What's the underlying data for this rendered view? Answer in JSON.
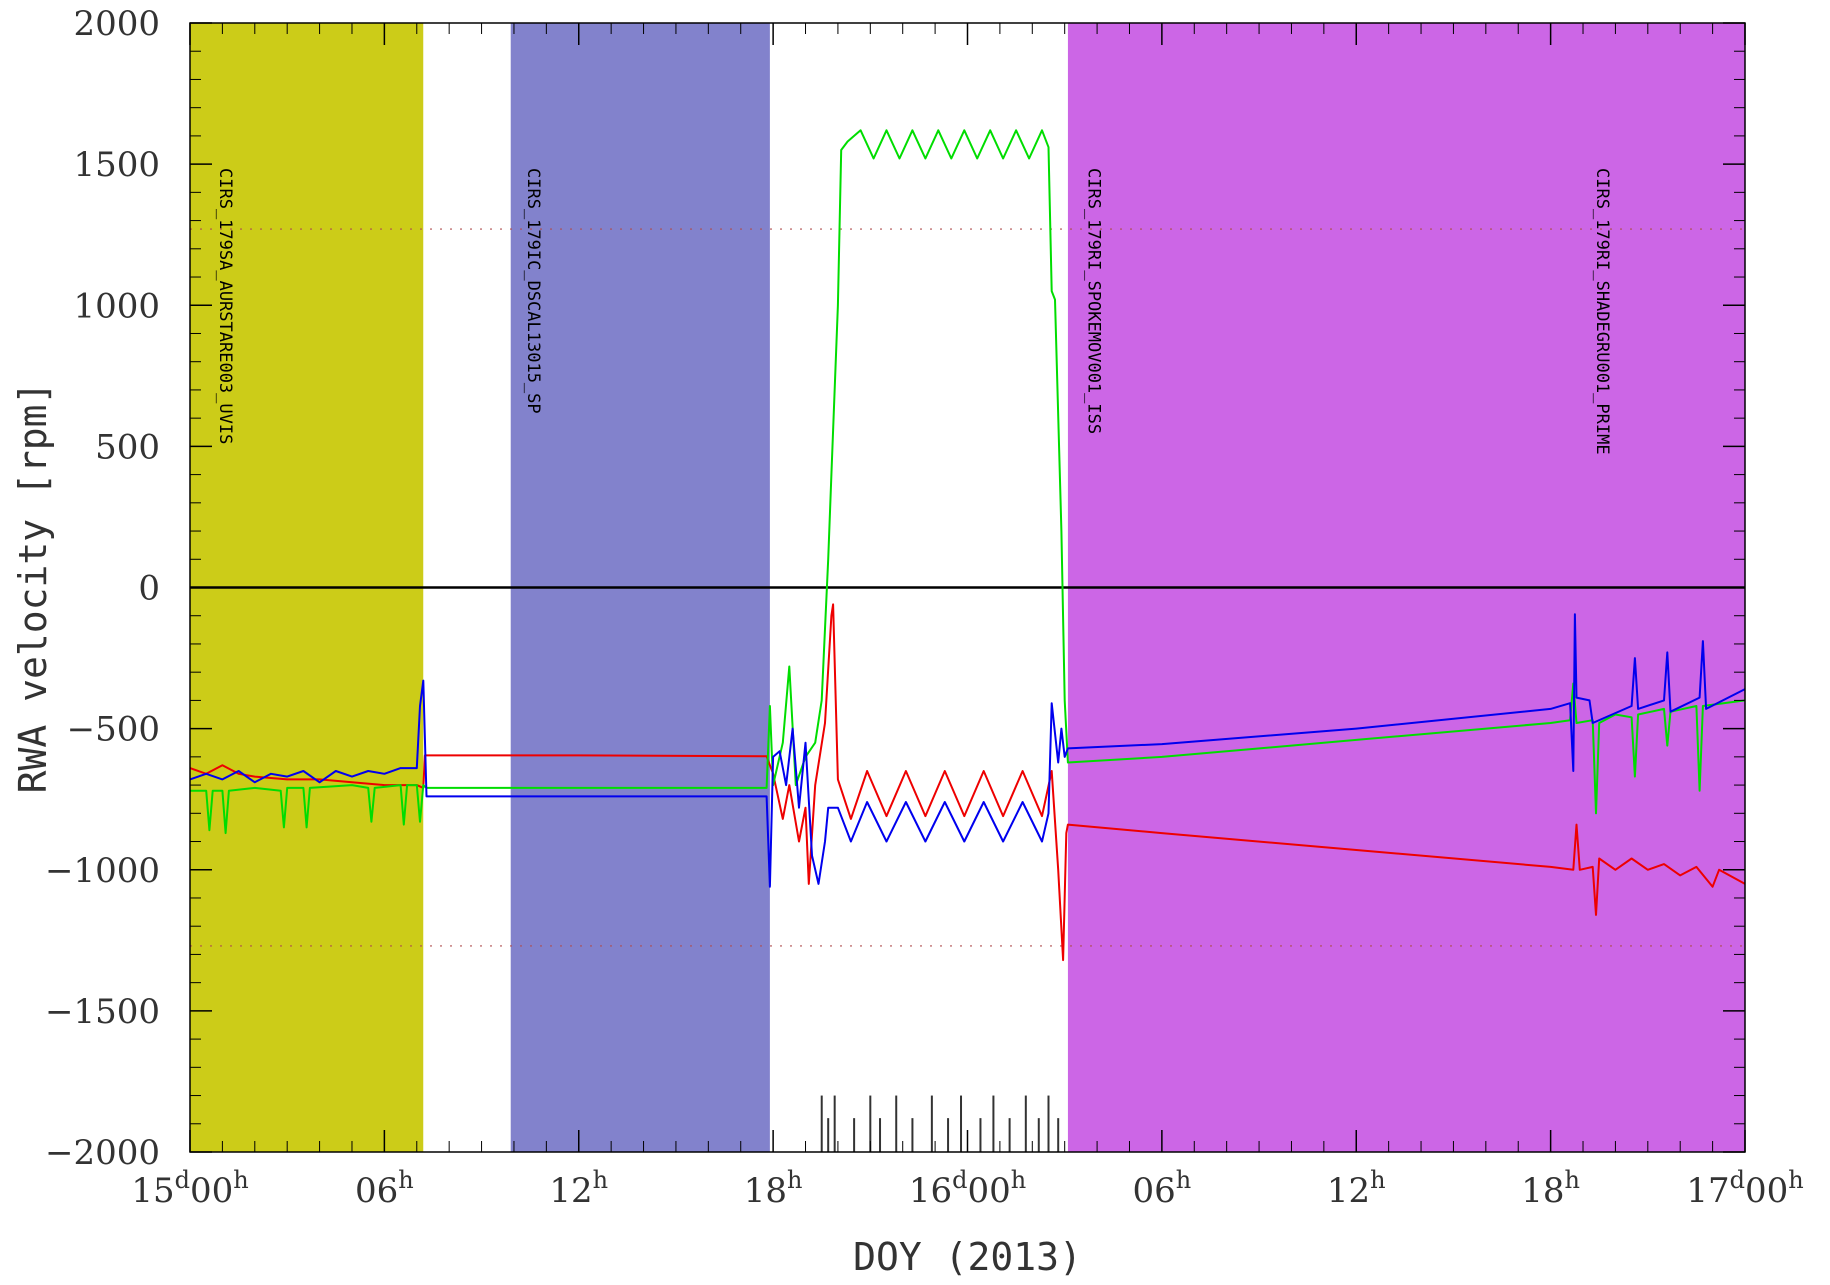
{
  "chart_data": {
    "type": "line",
    "title": "",
    "xlabel": "DOY (2013)",
    "ylabel": "RWA velocity [rpm]",
    "xlim": [
      "15d00h",
      "17d00h"
    ],
    "ylim": [
      -2000,
      2000
    ],
    "grid": false,
    "yticks": [
      -2000,
      -1500,
      -1000,
      -500,
      0,
      500,
      1000,
      1500,
      2000
    ],
    "xticks": [
      {
        "hours": 0,
        "day": "15",
        "rest": "00",
        "h": "h"
      },
      {
        "hours": 6,
        "day": "",
        "rest": "06",
        "h": "h"
      },
      {
        "hours": 12,
        "day": "",
        "rest": "12",
        "h": "h"
      },
      {
        "hours": 18,
        "day": "",
        "rest": "18",
        "h": "h"
      },
      {
        "hours": 24,
        "day": "16",
        "rest": "00",
        "h": "h"
      },
      {
        "hours": 30,
        "day": "",
        "rest": "06",
        "h": "h"
      },
      {
        "hours": 36,
        "day": "",
        "rest": "12",
        "h": "h"
      },
      {
        "hours": 42,
        "day": "",
        "rest": "18",
        "h": "h"
      },
      {
        "hours": 48,
        "day": "17",
        "rest": "00",
        "h": "h"
      }
    ],
    "reference_lines": [
      {
        "y": 0,
        "style": "solid",
        "color": "#000000"
      },
      {
        "y": 1270,
        "style": "dotted",
        "color": "#b05050"
      },
      {
        "y": -1270,
        "style": "dotted",
        "color": "#b05050"
      }
    ],
    "bands": [
      {
        "start": 0,
        "end": 7.2,
        "color": "#cccc18",
        "label": "CIRS_179SA_AURSTARE003_UVIS"
      },
      {
        "start": 9.9,
        "end": 17.9,
        "color": "#8282cc",
        "label": "CIRS_179IC_DSCAL13015_SP"
      },
      {
        "start": 27.1,
        "end": 48,
        "color": "#cc66e6",
        "label": "CIRS_179RI_SPOKEMOV001_ISS"
      },
      {
        "start": 27.1,
        "end": 48,
        "color": "#cc66e6",
        "label": "CIRS_179RI_SHADEGRU001_PRIME"
      }
    ],
    "band_label_positions_hours": [
      0.5,
      10.0,
      27.3,
      43.0
    ],
    "event_ticks_hours": [
      19.5,
      19.7,
      19.9,
      20.5,
      21.0,
      21.3,
      21.8,
      22.3,
      22.9,
      23.4,
      23.8,
      24.4,
      24.8,
      25.3,
      25.8,
      26.2,
      26.5,
      26.8
    ],
    "series": [
      {
        "color": "#ee0000",
        "points": [
          [
            0,
            -640
          ],
          [
            0.5,
            -660
          ],
          [
            1,
            -630
          ],
          [
            1.5,
            -660
          ],
          [
            2,
            -670
          ],
          [
            3,
            -680
          ],
          [
            4,
            -680
          ],
          [
            5,
            -690
          ],
          [
            6,
            -700
          ],
          [
            7,
            -700
          ],
          [
            7.2,
            -710
          ],
          [
            7.25,
            -595
          ],
          [
            12,
            -595
          ],
          [
            17.8,
            -598
          ],
          [
            18,
            -660
          ],
          [
            18.3,
            -820
          ],
          [
            18.5,
            -700
          ],
          [
            18.8,
            -900
          ],
          [
            19.0,
            -780
          ],
          [
            19.1,
            -1050
          ],
          [
            19.3,
            -700
          ],
          [
            19.6,
            -480
          ],
          [
            19.8,
            -100
          ],
          [
            19.85,
            -60
          ],
          [
            20,
            -680
          ],
          [
            20.4,
            -820
          ],
          [
            20.9,
            -650
          ],
          [
            21.5,
            -810
          ],
          [
            22.1,
            -650
          ],
          [
            22.7,
            -810
          ],
          [
            23.3,
            -650
          ],
          [
            23.9,
            -810
          ],
          [
            24.5,
            -650
          ],
          [
            25.1,
            -810
          ],
          [
            25.7,
            -650
          ],
          [
            26.3,
            -810
          ],
          [
            26.6,
            -650
          ],
          [
            26.8,
            -1000
          ],
          [
            26.95,
            -1320
          ],
          [
            27.05,
            -870
          ],
          [
            27.1,
            -840
          ],
          [
            30,
            -870
          ],
          [
            36,
            -930
          ],
          [
            42,
            -990
          ],
          [
            42.7,
            -1000
          ],
          [
            42.8,
            -840
          ],
          [
            42.9,
            -1000
          ],
          [
            43.3,
            -990
          ],
          [
            43.4,
            -1160
          ],
          [
            43.5,
            -960
          ],
          [
            44,
            -1000
          ],
          [
            44.5,
            -960
          ],
          [
            45,
            -1000
          ],
          [
            45.5,
            -980
          ],
          [
            46,
            -1020
          ],
          [
            46.5,
            -990
          ],
          [
            47,
            -1060
          ],
          [
            47.2,
            -1000
          ],
          [
            48,
            -1050
          ]
        ]
      },
      {
        "color": "#00dd00",
        "points": [
          [
            0,
            -720
          ],
          [
            0.5,
            -720
          ],
          [
            0.6,
            -860
          ],
          [
            0.7,
            -720
          ],
          [
            1,
            -720
          ],
          [
            1.1,
            -870
          ],
          [
            1.2,
            -720
          ],
          [
            2,
            -710
          ],
          [
            2.8,
            -720
          ],
          [
            2.9,
            -850
          ],
          [
            3.0,
            -710
          ],
          [
            3.5,
            -710
          ],
          [
            3.6,
            -850
          ],
          [
            3.7,
            -710
          ],
          [
            5,
            -700
          ],
          [
            5.5,
            -710
          ],
          [
            5.6,
            -830
          ],
          [
            5.7,
            -710
          ],
          [
            6.5,
            -700
          ],
          [
            6.6,
            -840
          ],
          [
            6.7,
            -700
          ],
          [
            7,
            -700
          ],
          [
            7.1,
            -830
          ],
          [
            7.2,
            -700
          ],
          [
            7.3,
            -710
          ],
          [
            12,
            -710
          ],
          [
            17.8,
            -710
          ],
          [
            17.9,
            -420
          ],
          [
            18.0,
            -700
          ],
          [
            18.3,
            -550
          ],
          [
            18.5,
            -280
          ],
          [
            18.7,
            -700
          ],
          [
            19.0,
            -600
          ],
          [
            19.3,
            -550
          ],
          [
            19.5,
            -400
          ],
          [
            19.7,
            100
          ],
          [
            19.8,
            400
          ],
          [
            20.0,
            1000
          ],
          [
            20.1,
            1550
          ],
          [
            20.3,
            1580
          ],
          [
            20.7,
            1620
          ],
          [
            21.1,
            1520
          ],
          [
            21.5,
            1620
          ],
          [
            21.9,
            1520
          ],
          [
            22.3,
            1620
          ],
          [
            22.7,
            1520
          ],
          [
            23.1,
            1620
          ],
          [
            23.5,
            1520
          ],
          [
            23.9,
            1620
          ],
          [
            24.3,
            1520
          ],
          [
            24.7,
            1620
          ],
          [
            25.1,
            1520
          ],
          [
            25.5,
            1620
          ],
          [
            25.9,
            1520
          ],
          [
            26.3,
            1620
          ],
          [
            26.5,
            1560
          ],
          [
            26.6,
            1050
          ],
          [
            26.7,
            1020
          ],
          [
            26.9,
            200
          ],
          [
            27.0,
            -400
          ],
          [
            27.1,
            -620
          ],
          [
            30,
            -600
          ],
          [
            36,
            -540
          ],
          [
            42,
            -480
          ],
          [
            42.6,
            -470
          ],
          [
            42.7,
            -340
          ],
          [
            42.8,
            -480
          ],
          [
            43.3,
            -470
          ],
          [
            43.4,
            -800
          ],
          [
            43.5,
            -480
          ],
          [
            44,
            -450
          ],
          [
            44.5,
            -460
          ],
          [
            44.6,
            -670
          ],
          [
            44.7,
            -450
          ],
          [
            45.5,
            -430
          ],
          [
            45.6,
            -560
          ],
          [
            45.7,
            -440
          ],
          [
            46.5,
            -420
          ],
          [
            46.6,
            -720
          ],
          [
            46.7,
            -420
          ],
          [
            48,
            -400
          ]
        ]
      },
      {
        "color": "#0000ee",
        "points": [
          [
            0,
            -680
          ],
          [
            0.5,
            -660
          ],
          [
            1,
            -680
          ],
          [
            1.5,
            -650
          ],
          [
            2,
            -690
          ],
          [
            2.5,
            -660
          ],
          [
            3,
            -670
          ],
          [
            3.5,
            -650
          ],
          [
            4,
            -690
          ],
          [
            4.5,
            -650
          ],
          [
            5,
            -670
          ],
          [
            5.5,
            -650
          ],
          [
            6,
            -660
          ],
          [
            6.5,
            -640
          ],
          [
            7,
            -640
          ],
          [
            7.1,
            -420
          ],
          [
            7.2,
            -330
          ],
          [
            7.3,
            -740
          ],
          [
            12,
            -740
          ],
          [
            17.8,
            -740
          ],
          [
            17.9,
            -1060
          ],
          [
            18.0,
            -600
          ],
          [
            18.2,
            -580
          ],
          [
            18.4,
            -700
          ],
          [
            18.6,
            -500
          ],
          [
            18.8,
            -780
          ],
          [
            19.0,
            -550
          ],
          [
            19.2,
            -950
          ],
          [
            19.4,
            -1050
          ],
          [
            19.6,
            -900
          ],
          [
            19.7,
            -780
          ],
          [
            20,
            -780
          ],
          [
            20.4,
            -900
          ],
          [
            20.9,
            -760
          ],
          [
            21.5,
            -900
          ],
          [
            22.1,
            -760
          ],
          [
            22.7,
            -900
          ],
          [
            23.3,
            -760
          ],
          [
            23.9,
            -900
          ],
          [
            24.5,
            -760
          ],
          [
            25.1,
            -900
          ],
          [
            25.7,
            -760
          ],
          [
            26.3,
            -900
          ],
          [
            26.5,
            -800
          ],
          [
            26.6,
            -410
          ],
          [
            26.8,
            -620
          ],
          [
            26.9,
            -500
          ],
          [
            27.0,
            -600
          ],
          [
            27.1,
            -570
          ],
          [
            30,
            -555
          ],
          [
            36,
            -500
          ],
          [
            42,
            -430
          ],
          [
            42.6,
            -410
          ],
          [
            42.7,
            -650
          ],
          [
            42.75,
            -95
          ],
          [
            42.8,
            -390
          ],
          [
            43.2,
            -400
          ],
          [
            43.3,
            -480
          ],
          [
            44.5,
            -420
          ],
          [
            44.6,
            -250
          ],
          [
            44.7,
            -430
          ],
          [
            45.5,
            -400
          ],
          [
            45.6,
            -230
          ],
          [
            45.7,
            -440
          ],
          [
            46.6,
            -390
          ],
          [
            46.7,
            -190
          ],
          [
            46.8,
            -430
          ],
          [
            48,
            -360
          ]
        ]
      }
    ]
  }
}
